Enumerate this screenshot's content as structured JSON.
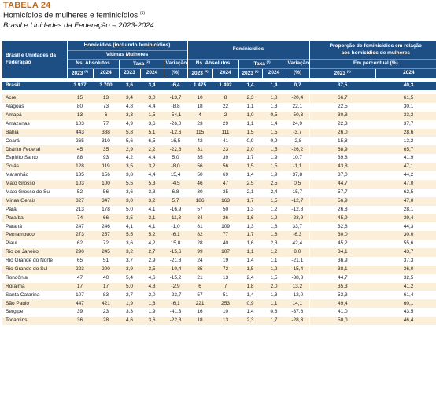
{
  "table_number": "TABELA 24",
  "title": "Homicídios de mulheres e feminicídios",
  "title_note": "(1)",
  "subtitle": "Brasil e Unidades da Federação – 2023-2024",
  "headers": {
    "region": "Brasil e Unidades da Federação",
    "homicidios_group": "Homicídios (incluindo feminicídios)",
    "vitimas": "Vítimas Mulheres",
    "ns_absolutos": "Ns. Absolutos",
    "taxa": "Taxa",
    "taxa_note": "(2)",
    "variacao": "Variação",
    "variacao_unit": "(%)",
    "feminicidios_group": "Feminicídios",
    "proporcao_group_line1": "Proporção de feminicídios em relação",
    "proporcao_group_line2": "aos homicídios de mulheres",
    "em_percentual": "Em percentual (%)",
    "year_2023": "2023",
    "year_2023_note": "(3)",
    "year_2024": "2024"
  },
  "brasil": {
    "name": "Brasil",
    "h23": "3.937",
    "h24": "3.700",
    "t23": "3,6",
    "t24": "3,4",
    "var": "-6,4",
    "f23": "1.475",
    "f24": "1.492",
    "ft23": "1,4",
    "ft24": "1,4",
    "fvar": "0,7",
    "p23": "37,5",
    "p24": "40,3"
  },
  "rows": [
    {
      "name": "Acre",
      "h23": "15",
      "h24": "13",
      "t23": "3,4",
      "t24": "3,0",
      "var": "-13,7",
      "f23": "10",
      "f24": "8",
      "ft23": "2,3",
      "ft24": "1,8",
      "fvar": "-20,4",
      "p23": "66,7",
      "p24": "61,5"
    },
    {
      "name": "Alagoas",
      "h23": "80",
      "h24": "73",
      "t23": "4,8",
      "t24": "4,4",
      "var": "-8,8",
      "f23": "18",
      "f24": "22",
      "ft23": "1,1",
      "ft24": "1,3",
      "fvar": "22,1",
      "p23": "22,5",
      "p24": "30,1"
    },
    {
      "name": "Amapá",
      "h23": "13",
      "h24": "6",
      "t23": "3,3",
      "t24": "1,5",
      "var": "-54,1",
      "f23": "4",
      "f24": "2",
      "ft23": "1,0",
      "ft24": "0,5",
      "fvar": "-50,3",
      "p23": "30,8",
      "p24": "33,3"
    },
    {
      "name": "Amazonas",
      "h23": "103",
      "h24": "77",
      "t23": "4,9",
      "t24": "3,6",
      "var": "-26,0",
      "f23": "23",
      "f24": "29",
      "ft23": "1,1",
      "ft24": "1,4",
      "fvar": "24,9",
      "p23": "22,3",
      "p24": "37,7"
    },
    {
      "name": "Bahia",
      "h23": "443",
      "h24": "388",
      "t23": "5,8",
      "t24": "5,1",
      "var": "-12,6",
      "f23": "115",
      "f24": "111",
      "ft23": "1,5",
      "ft24": "1,5",
      "fvar": "-3,7",
      "p23": "26,0",
      "p24": "28,6"
    },
    {
      "name": "Ceará",
      "h23": "265",
      "h24": "310",
      "t23": "5,6",
      "t24": "6,5",
      "var": "16,5",
      "f23": "42",
      "f24": "41",
      "ft23": "0,9",
      "ft24": "0,9",
      "fvar": "-2,8",
      "p23": "15,8",
      "p24": "13,2"
    },
    {
      "name": "Distrito Federal",
      "h23": "45",
      "h24": "35",
      "t23": "2,9",
      "t24": "2,2",
      "var": "-22,6",
      "f23": "31",
      "f24": "23",
      "ft23": "2,0",
      "ft24": "1,5",
      "fvar": "-26,2",
      "p23": "68,9",
      "p24": "65,7"
    },
    {
      "name": "Espírito Santo",
      "h23": "88",
      "h24": "93",
      "t23": "4,2",
      "t24": "4,4",
      "var": "5,0",
      "f23": "35",
      "f24": "39",
      "ft23": "1,7",
      "ft24": "1,9",
      "fvar": "10,7",
      "p23": "39,8",
      "p24": "41,9"
    },
    {
      "name": "Goiás",
      "h23": "128",
      "h24": "119",
      "t23": "3,5",
      "t24": "3,2",
      "var": "-8,0",
      "f23": "56",
      "f24": "56",
      "ft23": "1,5",
      "ft24": "1,5",
      "fvar": "-1,1",
      "p23": "43,8",
      "p24": "47,1"
    },
    {
      "name": "Maranhão",
      "h23": "135",
      "h24": "156",
      "t23": "3,8",
      "t24": "4,4",
      "var": "15,4",
      "f23": "50",
      "f24": "69",
      "ft23": "1,4",
      "ft24": "1,9",
      "fvar": "37,8",
      "p23": "37,0",
      "p24": "44,2"
    },
    {
      "name": "Mato Grosso",
      "h23": "103",
      "h24": "100",
      "t23": "5,5",
      "t24": "5,3",
      "var": "-4,5",
      "f23": "46",
      "f24": "47",
      "ft23": "2,5",
      "ft24": "2,5",
      "fvar": "0,5",
      "p23": "44,7",
      "p24": "47,0"
    },
    {
      "name": "Mato Grosso do Sul",
      "h23": "52",
      "h24": "56",
      "t23": "3,6",
      "t24": "3,8",
      "var": "6,8",
      "f23": "30",
      "f24": "35",
      "ft23": "2,1",
      "ft24": "2,4",
      "fvar": "15,7",
      "p23": "57,7",
      "p24": "62,5"
    },
    {
      "name": "Minas Gerais",
      "h23": "327",
      "h24": "347",
      "t23": "3,0",
      "t24": "3,2",
      "var": "5,7",
      "f23": "186",
      "f24": "163",
      "ft23": "1,7",
      "ft24": "1,5",
      "fvar": "-12,7",
      "p23": "56,9",
      "p24": "47,0"
    },
    {
      "name": "Pará",
      "h23": "213",
      "h24": "178",
      "t23": "5,0",
      "t24": "4,1",
      "var": "-16,9",
      "f23": "57",
      "f24": "50",
      "ft23": "1,3",
      "ft24": "1,2",
      "fvar": "-12,8",
      "p23": "26,8",
      "p24": "28,1"
    },
    {
      "name": "Paraíba",
      "h23": "74",
      "h24": "66",
      "t23": "3,5",
      "t24": "3,1",
      "var": "-11,3",
      "f23": "34",
      "f24": "26",
      "ft23": "1,6",
      "ft24": "1,2",
      "fvar": "-23,9",
      "p23": "45,9",
      "p24": "39,4"
    },
    {
      "name": "Paraná",
      "h23": "247",
      "h24": "246",
      "t23": "4,1",
      "t24": "4,1",
      "var": "-1,0",
      "f23": "81",
      "f24": "109",
      "ft23": "1,3",
      "ft24": "1,8",
      "fvar": "33,7",
      "p23": "32,8",
      "p24": "44,3"
    },
    {
      "name": "Pernambuco",
      "h23": "273",
      "h24": "257",
      "t23": "5,5",
      "t24": "5,2",
      "var": "-6,1",
      "f23": "82",
      "f24": "77",
      "ft23": "1,7",
      "ft24": "1,6",
      "fvar": "-6,3",
      "p23": "30,0",
      "p24": "30,0"
    },
    {
      "name": "Piauí",
      "h23": "62",
      "h24": "72",
      "t23": "3,6",
      "t24": "4,2",
      "var": "15,8",
      "f23": "28",
      "f24": "40",
      "ft23": "1,6",
      "ft24": "2,3",
      "fvar": "42,4",
      "p23": "45,2",
      "p24": "55,6"
    },
    {
      "name": "Rio de Janeiro",
      "h23": "290",
      "h24": "245",
      "t23": "3,2",
      "t24": "2,7",
      "var": "-15,6",
      "f23": "99",
      "f24": "107",
      "ft23": "1,1",
      "ft24": "1,2",
      "fvar": "8,0",
      "p23": "34,1",
      "p24": "43,7"
    },
    {
      "name": "Rio Grande do Norte",
      "h23": "65",
      "h24": "51",
      "t23": "3,7",
      "t24": "2,9",
      "var": "-21,8",
      "f23": "24",
      "f24": "19",
      "ft23": "1,4",
      "ft24": "1,1",
      "fvar": "-21,1",
      "p23": "36,9",
      "p24": "37,3"
    },
    {
      "name": "Rio Grande do Sul",
      "h23": "223",
      "h24": "200",
      "t23": "3,9",
      "t24": "3,5",
      "var": "-10,4",
      "f23": "85",
      "f24": "72",
      "ft23": "1,5",
      "ft24": "1,2",
      "fvar": "-15,4",
      "p23": "38,1",
      "p24": "36,0"
    },
    {
      "name": "Rondônia",
      "h23": "47",
      "h24": "40",
      "t23": "5,4",
      "t24": "4,6",
      "var": "-15,2",
      "f23": "21",
      "f24": "13",
      "ft23": "2,4",
      "ft24": "1,5",
      "fvar": "-38,3",
      "p23": "44,7",
      "p24": "32,5"
    },
    {
      "name": "Roraima",
      "h23": "17",
      "h24": "17",
      "t23": "5,0",
      "t24": "4,8",
      "var": "-2,9",
      "f23": "6",
      "f24": "7",
      "ft23": "1,8",
      "ft24": "2,0",
      "fvar": "13,2",
      "p23": "35,3",
      "p24": "41,2"
    },
    {
      "name": "Santa Catarina",
      "h23": "107",
      "h24": "83",
      "t23": "2,7",
      "t24": "2,0",
      "var": "-23,7",
      "f23": "57",
      "f24": "51",
      "ft23": "1,4",
      "ft24": "1,3",
      "fvar": "-12,0",
      "p23": "53,3",
      "p24": "61,4"
    },
    {
      "name": "São Paulo",
      "h23": "447",
      "h24": "421",
      "t23": "1,9",
      "t24": "1,8",
      "var": "-6,1",
      "f23": "221",
      "f24": "253",
      "ft23": "0,9",
      "ft24": "1,1",
      "fvar": "14,1",
      "p23": "49,4",
      "p24": "60,1"
    },
    {
      "name": "Sergipe",
      "h23": "39",
      "h24": "23",
      "t23": "3,3",
      "t24": "1,9",
      "var": "-41,3",
      "f23": "16",
      "f24": "10",
      "ft23": "1,4",
      "ft24": "0,8",
      "fvar": "-37,8",
      "p23": "41,0",
      "p24": "43,5"
    },
    {
      "name": "Tocantins",
      "h23": "36",
      "h24": "28",
      "t23": "4,6",
      "t24": "3,6",
      "var": "-22,8",
      "f23": "18",
      "f24": "13",
      "ft23": "2,3",
      "ft24": "1,7",
      "fvar": "-28,3",
      "p23": "50,0",
      "p24": "46,4"
    }
  ]
}
